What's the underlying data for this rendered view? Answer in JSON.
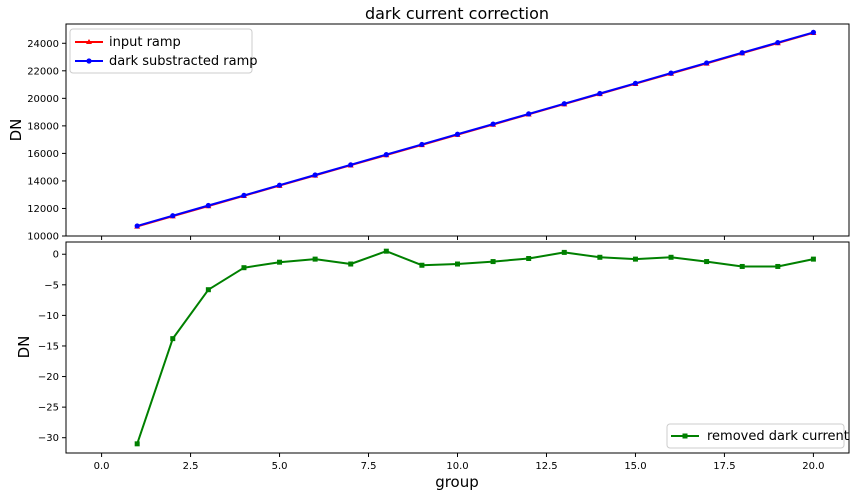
{
  "chart_data": [
    {
      "type": "line",
      "title": "dark current correction",
      "xlabel": "",
      "ylabel": "DN",
      "xlim": [
        -1,
        21
      ],
      "ylim": [
        10000,
        25400
      ],
      "yticks": [
        10000,
        12000,
        14000,
        16000,
        18000,
        20000,
        22000,
        24000
      ],
      "grid": false,
      "legend_position": "top-left",
      "x": [
        1,
        2,
        3,
        4,
        5,
        6,
        7,
        8,
        9,
        10,
        11,
        12,
        13,
        14,
        15,
        16,
        17,
        18,
        19,
        20
      ],
      "series": [
        {
          "name": "input ramp",
          "color": "#ff0000",
          "marker": "triangle",
          "values": [
            10700,
            11440,
            12180,
            12920,
            13660,
            14400,
            15140,
            15880,
            16620,
            17360,
            18100,
            18840,
            19580,
            20320,
            21060,
            21800,
            22540,
            23280,
            24020,
            24760
          ]
        },
        {
          "name": "dark substracted ramp",
          "color": "#0000ff",
          "marker": "circle",
          "values": [
            10731,
            11474,
            12216,
            12952,
            13691,
            14431,
            15172,
            15910,
            16652,
            17392,
            18131,
            18871,
            19610,
            20350,
            21091,
            21830,
            22571,
            23312,
            24052,
            24791
          ]
        }
      ]
    },
    {
      "type": "line",
      "title": "",
      "xlabel": "group",
      "ylabel": "DN",
      "xlim": [
        -1,
        21
      ],
      "ylim": [
        -32.5,
        2
      ],
      "xticks": [
        0.0,
        2.5,
        5.0,
        7.5,
        10.0,
        12.5,
        15.0,
        17.5,
        20.0
      ],
      "xtick_labels": [
        "0.0",
        "2.5",
        "5.0",
        "7.5",
        "10.0",
        "12.5",
        "15.0",
        "17.5",
        "20.0"
      ],
      "yticks": [
        0,
        -5,
        -10,
        -15,
        -20,
        -25,
        -30
      ],
      "grid": false,
      "legend_position": "bottom-right",
      "x": [
        1,
        2,
        3,
        4,
        5,
        6,
        7,
        8,
        9,
        10,
        11,
        12,
        13,
        14,
        15,
        16,
        17,
        18,
        19,
        20
      ],
      "series": [
        {
          "name": "removed dark current",
          "color": "#008000",
          "marker": "square",
          "values": [
            -31,
            -13.8,
            -5.8,
            -2.2,
            -1.3,
            -0.8,
            -1.6,
            0.5,
            -1.8,
            -1.6,
            -1.2,
            -0.7,
            0.3,
            -0.5,
            -0.8,
            -0.5,
            -1.2,
            -2,
            -2,
            -0.8
          ]
        }
      ]
    }
  ]
}
